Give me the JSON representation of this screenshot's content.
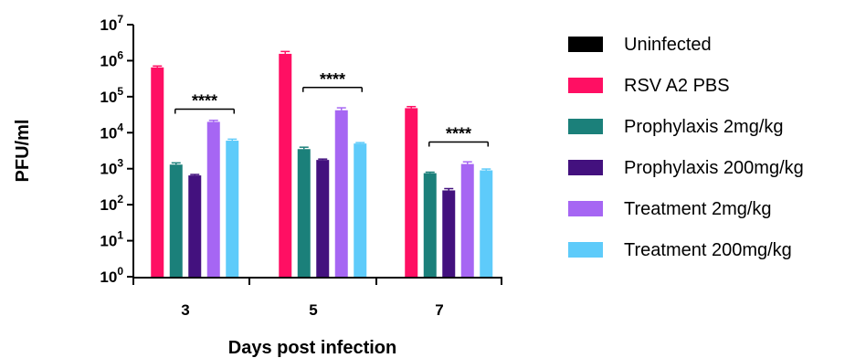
{
  "chart_data": {
    "type": "bar",
    "xlabel": "Days post infection",
    "ylabel": "PFU/ml",
    "yscale": "log",
    "ylim": [
      1,
      10000000
    ],
    "ytick_base": "10",
    "ytick_exponents": [
      "0",
      "1",
      "2",
      "3",
      "4",
      "5",
      "6",
      "7"
    ],
    "categories": [
      "3",
      "5",
      "7"
    ],
    "legend_position": "right",
    "series": [
      {
        "name": "Uninfected",
        "color": "#000000",
        "values": [
          null,
          null,
          null
        ],
        "errors": [
          null,
          null,
          null
        ]
      },
      {
        "name": "RSV A2 PBS",
        "color": "#FF0F63",
        "values": [
          650000,
          1550000,
          48000
        ],
        "errors": [
          60000,
          250000,
          5000
        ]
      },
      {
        "name": "Prophylaxis 2mg/kg",
        "color": "#1B807A",
        "values": [
          1300,
          3500,
          750
        ],
        "errors": [
          150,
          450,
          50
        ]
      },
      {
        "name": "Prophylaxis 200mg/kg",
        "color": "#43117E",
        "values": [
          650,
          1750,
          250
        ],
        "errors": [
          40,
          100,
          30
        ]
      },
      {
        "name": "Treatment 2mg/kg",
        "color": "#A666F3",
        "values": [
          20000,
          42000,
          1350
        ],
        "errors": [
          2000,
          7000,
          200
        ]
      },
      {
        "name": "Treatment 200mg/kg",
        "color": "#5ECBFA",
        "values": [
          6000,
          5000,
          900
        ],
        "errors": [
          600,
          300,
          80
        ]
      }
    ],
    "annotations": [
      {
        "text": "****",
        "category": "3",
        "value": 45000
      },
      {
        "text": "****",
        "category": "5",
        "value": 180000
      },
      {
        "text": "****",
        "category": "7",
        "value": 5500
      }
    ]
  }
}
